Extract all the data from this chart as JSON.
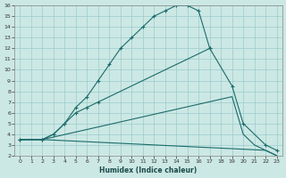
{
  "xlabel": "Humidex (Indice chaleur)",
  "bg_color": "#cce8e4",
  "grid_color": "#99cccc",
  "line_color": "#1a6b6b",
  "xlim": [
    -0.5,
    23.5
  ],
  "ylim": [
    2,
    16
  ],
  "xticks": [
    0,
    1,
    2,
    3,
    4,
    5,
    6,
    7,
    8,
    9,
    10,
    11,
    12,
    13,
    14,
    15,
    16,
    17,
    18,
    19,
    20,
    21,
    22,
    23
  ],
  "yticks": [
    2,
    3,
    4,
    5,
    6,
    7,
    8,
    9,
    10,
    11,
    12,
    13,
    14,
    15,
    16
  ],
  "curve1_x": [
    0,
    2,
    3,
    4,
    5,
    6,
    7,
    8,
    9,
    10,
    11,
    12,
    13,
    14,
    15,
    16,
    17
  ],
  "curve1_y": [
    3.5,
    3.5,
    4.0,
    5.0,
    6.5,
    7.5,
    9.0,
    10.5,
    12.0,
    13.0,
    14.0,
    15.0,
    15.5,
    16.0,
    16.0,
    15.5,
    12.0
  ],
  "curve2_x": [
    0,
    2,
    3,
    4,
    5,
    6,
    7,
    17,
    19,
    20,
    22,
    23
  ],
  "curve2_y": [
    3.5,
    3.5,
    4.0,
    5.0,
    6.0,
    6.5,
    7.0,
    12.0,
    8.5,
    5.0,
    3.0,
    2.5
  ],
  "curve3_x": [
    0,
    2,
    19,
    20,
    21,
    22,
    23
  ],
  "curve3_y": [
    3.5,
    3.5,
    7.5,
    4.0,
    3.0,
    2.5,
    2.0
  ],
  "curve4_x": [
    0,
    2,
    22,
    23
  ],
  "curve4_y": [
    3.5,
    3.5,
    2.5,
    2.0
  ]
}
